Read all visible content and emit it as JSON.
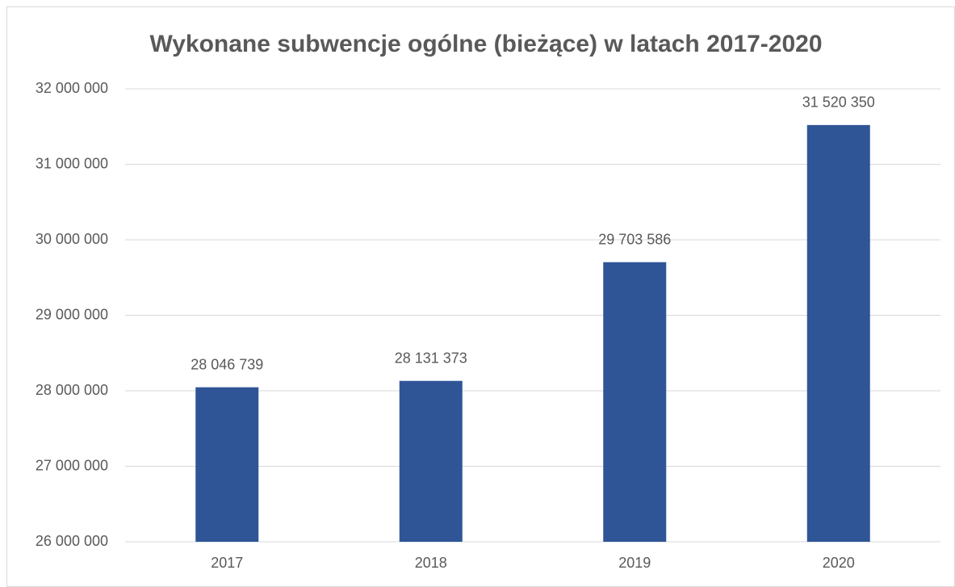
{
  "chart_data": {
    "type": "bar",
    "title": "Wykonane subwencje ogólne (bieżące) w latach 2017-2020",
    "categories": [
      "2017",
      "2018",
      "2019",
      "2020"
    ],
    "values": [
      28046739,
      28131373,
      29703586,
      31520350
    ],
    "value_labels": [
      "28 046 739",
      "28 131 373",
      "29 703 586",
      "31 520 350"
    ],
    "color": "#2f5597",
    "ylim": [
      26000000,
      32000000
    ],
    "yticks": [
      {
        "value": 26000000,
        "label": "26 000 000"
      },
      {
        "value": 27000000,
        "label": "27 000 000"
      },
      {
        "value": 28000000,
        "label": "28 000 000"
      },
      {
        "value": 29000000,
        "label": "29 000 000"
      },
      {
        "value": 30000000,
        "label": "30 000 000"
      },
      {
        "value": 31000000,
        "label": "31 000 000"
      },
      {
        "value": 32000000,
        "label": "32 000 000"
      }
    ],
    "grid": true
  }
}
